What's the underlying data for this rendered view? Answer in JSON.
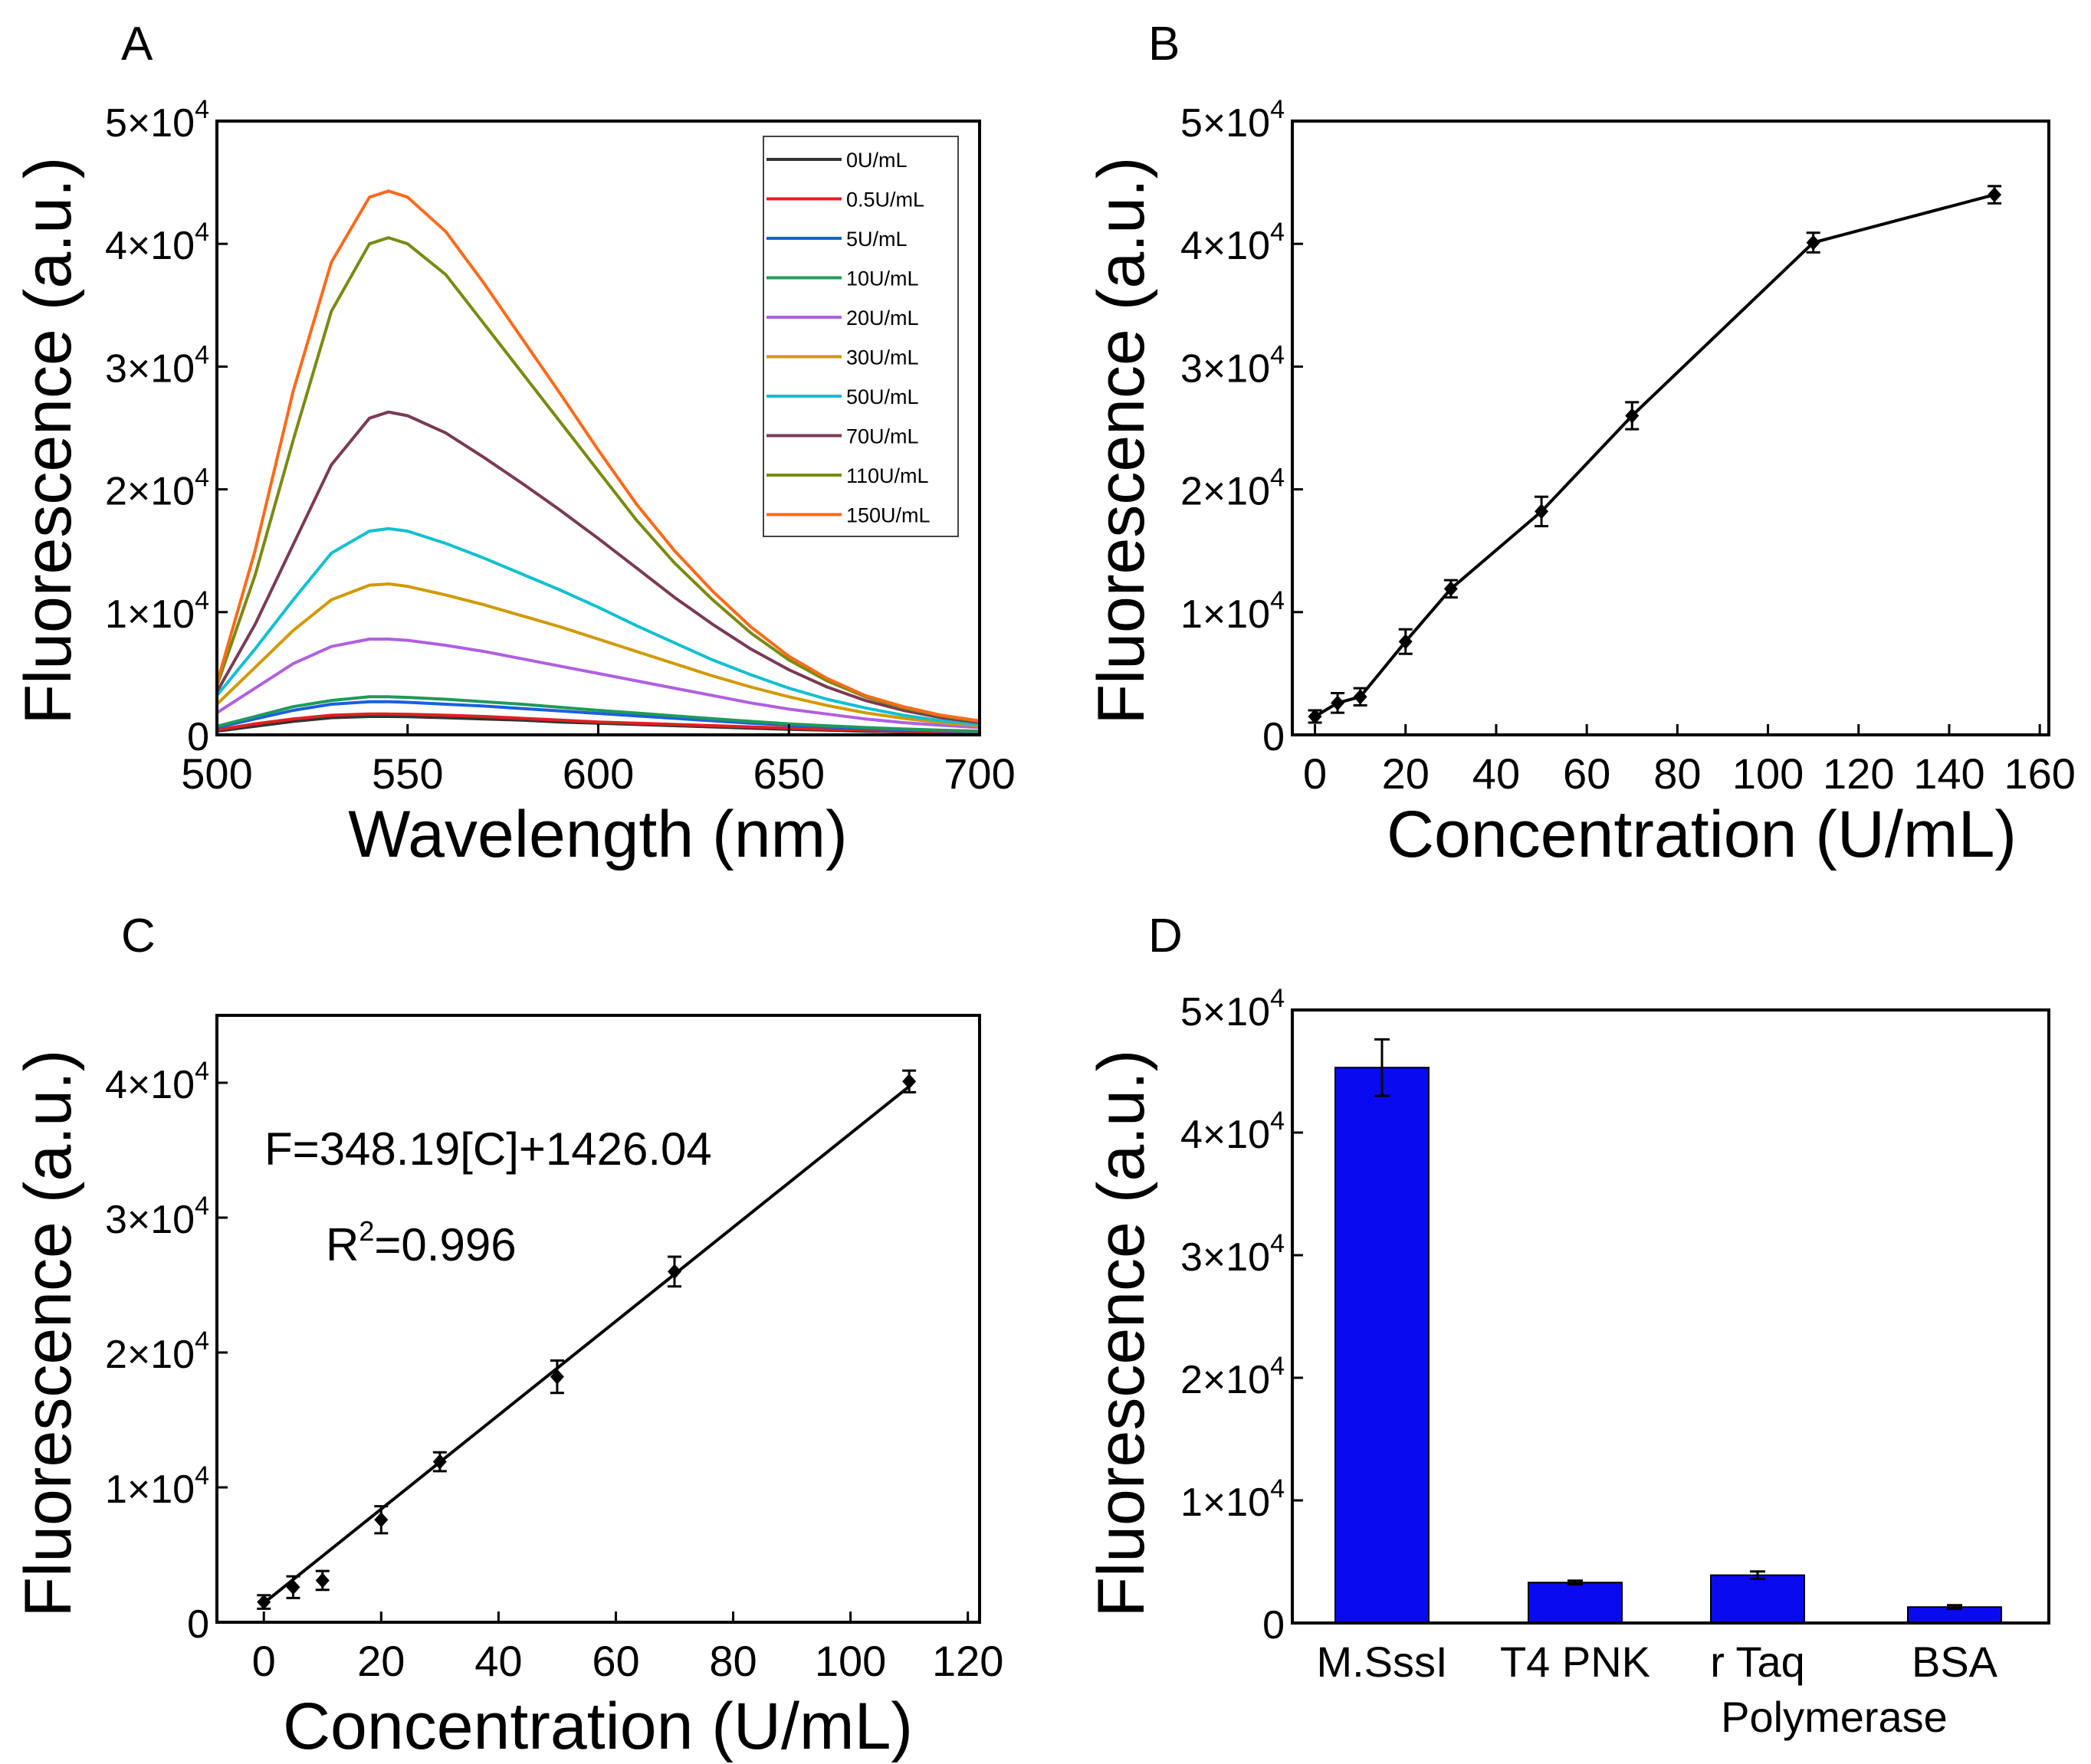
{
  "chart_data": [
    {
      "panel": "A",
      "type": "line",
      "xlabel": "Wavelength (nm)",
      "ylabel": "Fluorescence (a.u.)",
      "xlim": [
        500,
        700
      ],
      "ylim": [
        0,
        50000
      ],
      "xticks": [
        500,
        550,
        600,
        650,
        700
      ],
      "xtick_labels": [
        "500",
        "550",
        "600",
        "650",
        "700"
      ],
      "yticks": [
        0,
        10000,
        20000,
        30000,
        40000,
        50000
      ],
      "ytick_labels": [
        "0",
        "1×10",
        "2×10",
        "3×10",
        "4×10",
        "5×10"
      ],
      "ytick_exponent": "4",
      "x": [
        500,
        510,
        520,
        530,
        540,
        545,
        550,
        560,
        570,
        580,
        590,
        600,
        610,
        620,
        630,
        640,
        650,
        660,
        670,
        680,
        690,
        700
      ],
      "series": [
        {
          "name": "0U/mL",
          "color": "#333333",
          "values": [
            300,
            700,
            1100,
            1400,
            1500,
            1500,
            1480,
            1400,
            1300,
            1200,
            1050,
            950,
            850,
            750,
            650,
            550,
            450,
            380,
            300,
            250,
            200,
            150
          ]
        },
        {
          "name": "0.5U/mL",
          "color": "#e02020",
          "values": [
            400,
            900,
            1300,
            1600,
            1700,
            1700,
            1680,
            1600,
            1500,
            1350,
            1200,
            1050,
            950,
            850,
            750,
            650,
            550,
            450,
            380,
            300,
            250,
            200
          ]
        },
        {
          "name": "5U/mL",
          "color": "#1a5fe0",
          "values": [
            600,
            1300,
            2000,
            2500,
            2700,
            2700,
            2650,
            2500,
            2350,
            2150,
            1950,
            1750,
            1550,
            1350,
            1150,
            950,
            800,
            650,
            520,
            420,
            330,
            260
          ]
        },
        {
          "name": "10U/mL",
          "color": "#1f9a5a",
          "values": [
            700,
            1500,
            2300,
            2800,
            3100,
            3100,
            3050,
            2900,
            2700,
            2500,
            2250,
            2000,
            1780,
            1550,
            1320,
            1100,
            900,
            740,
            600,
            480,
            380,
            300
          ]
        },
        {
          "name": "20U/mL",
          "color": "#b060e0",
          "values": [
            1800,
            3800,
            5800,
            7200,
            7800,
            7800,
            7700,
            7300,
            6800,
            6200,
            5600,
            5000,
            4400,
            3800,
            3200,
            2600,
            2100,
            1700,
            1300,
            1000,
            780,
            600
          ]
        },
        {
          "name": "30U/mL",
          "color": "#d09a00",
          "values": [
            2500,
            5500,
            8500,
            11000,
            12200,
            12300,
            12100,
            11400,
            10600,
            9700,
            8800,
            7800,
            6800,
            5800,
            4800,
            3900,
            3100,
            2400,
            1800,
            1350,
            1000,
            750
          ]
        },
        {
          "name": "50U/mL",
          "color": "#10c0d0",
          "values": [
            3200,
            7000,
            11000,
            14800,
            16600,
            16800,
            16600,
            15600,
            14400,
            13100,
            11800,
            10400,
            8900,
            7500,
            6100,
            4900,
            3800,
            2900,
            2200,
            1600,
            1150,
            850
          ]
        },
        {
          "name": "70U/mL",
          "color": "#7a3a55",
          "values": [
            3500,
            9000,
            15500,
            22000,
            25800,
            26300,
            26000,
            24600,
            22600,
            20500,
            18300,
            16000,
            13600,
            11200,
            9000,
            7000,
            5300,
            3900,
            2800,
            2000,
            1400,
            1000
          ]
        },
        {
          "name": "110U/mL",
          "color": "#7a8a10",
          "values": [
            4000,
            13000,
            24000,
            34500,
            40000,
            40500,
            40000,
            37500,
            33500,
            29500,
            25500,
            21500,
            17500,
            14000,
            11000,
            8300,
            6100,
            4400,
            3100,
            2200,
            1550,
            1100
          ]
        },
        {
          "name": "150U/mL",
          "color": "#ff6a1a",
          "values": [
            4200,
            15000,
            28000,
            38500,
            43800,
            44300,
            43800,
            41000,
            36800,
            32300,
            27800,
            23200,
            18800,
            15000,
            11700,
            8800,
            6400,
            4600,
            3200,
            2300,
            1600,
            1150
          ]
        }
      ]
    },
    {
      "panel": "B",
      "type": "line",
      "xlabel": "Concentration (U/mL)",
      "ylabel": "Fluorescence (a.u.)",
      "xlim": [
        -5,
        162
      ],
      "ylim": [
        0,
        50000
      ],
      "xticks": [
        0,
        20,
        40,
        60,
        80,
        100,
        120,
        140,
        160
      ],
      "xtick_labels": [
        "0",
        "20",
        "40",
        "60",
        "80",
        "100",
        "120",
        "140",
        "160"
      ],
      "yticks": [
        0,
        10000,
        20000,
        30000,
        40000,
        50000
      ],
      "ytick_labels": [
        "0",
        "1×10",
        "2×10",
        "3×10",
        "4×10",
        "5×10"
      ],
      "ytick_exponent": "4",
      "x": [
        0,
        5,
        10,
        20,
        30,
        50,
        70,
        110,
        150
      ],
      "values": [
        1500,
        2600,
        3100,
        7600,
        11900,
        18200,
        26000,
        40100,
        44000
      ],
      "errors": [
        500,
        800,
        700,
        1000,
        700,
        1200,
        1100,
        800,
        700
      ]
    },
    {
      "panel": "C",
      "type": "scatter",
      "xlabel": "Concentration (U/mL)",
      "ylabel": "Fluorescence (a.u.)",
      "xlim": [
        -8,
        122
      ],
      "ylim": [
        0,
        45000
      ],
      "xticks": [
        0,
        20,
        40,
        60,
        80,
        100,
        120
      ],
      "xtick_labels": [
        "0",
        "20",
        "40",
        "60",
        "80",
        "100",
        "120"
      ],
      "yticks": [
        0,
        10000,
        20000,
        30000,
        40000
      ],
      "ytick_labels": [
        "0",
        "1×10",
        "2×10",
        "3×10",
        "4×10"
      ],
      "ytick_exponent": "4",
      "x": [
        0,
        5,
        10,
        20,
        30,
        50,
        70,
        110
      ],
      "values": [
        1500,
        2600,
        3100,
        7600,
        11900,
        18200,
        26000,
        40100
      ],
      "errors": [
        500,
        800,
        700,
        1000,
        700,
        1200,
        1100,
        800
      ],
      "fit": {
        "slope": 348.19,
        "intercept": 1426.04,
        "x_range": [
          0,
          110
        ]
      },
      "annotations": {
        "equation": "F=348.19[C]+1426.04",
        "r2_prefix": "R",
        "r2_sup": "2",
        "r2_suffix": "=0.996"
      }
    },
    {
      "panel": "D",
      "type": "bar",
      "xlabel": "",
      "ylabel": "Fluorescence (a.u.)",
      "ylim": [
        0,
        50000
      ],
      "yticks": [
        0,
        10000,
        20000,
        30000,
        40000,
        50000
      ],
      "ytick_labels": [
        "0",
        "1×10",
        "2×10",
        "3×10",
        "4×10",
        "5×10"
      ],
      "ytick_exponent": "4",
      "categories": [
        "M.SssI",
        "T4 PNK",
        "r Taq",
        "BSA"
      ],
      "category_second_lines": [
        "",
        "",
        "Polymerase",
        ""
      ],
      "values": [
        45300,
        3300,
        3900,
        1300
      ],
      "errors": [
        2300,
        150,
        300,
        150
      ],
      "bar_color": "#0a0af0"
    }
  ]
}
